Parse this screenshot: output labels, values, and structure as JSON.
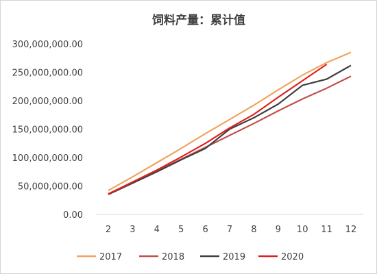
{
  "chart_data": {
    "type": "line",
    "title": "饲料产量：累计值",
    "xlabel": "",
    "ylabel": "",
    "x": [
      2,
      3,
      4,
      5,
      6,
      7,
      8,
      9,
      10,
      11,
      12
    ],
    "x_tick_labels": [
      "2",
      "3",
      "4",
      "5",
      "6",
      "7",
      "8",
      "9",
      "10",
      "11",
      "12"
    ],
    "ylim": [
      0,
      300000000
    ],
    "y_ticks": [
      0,
      50000000,
      100000000,
      150000000,
      200000000,
      250000000,
      300000000
    ],
    "y_tick_labels": [
      "0.00",
      "50,000,000.00",
      "100,000,000.00",
      "150,000,000.00",
      "200,000,000.00",
      "250,000,000.00",
      "300,000,000.00"
    ],
    "grid": false,
    "legend_position": "bottom",
    "series": [
      {
        "name": "2017",
        "color": "#F2A35E",
        "values": [
          42000000,
          66000000,
          91000000,
          116000000,
          142000000,
          167000000,
          192000000,
          219000000,
          245000000,
          267000000,
          285000000
        ]
      },
      {
        "name": "2018",
        "color": "#C0504D",
        "values": [
          36000000,
          56000000,
          76000000,
          97000000,
          118000000,
          139000000,
          160000000,
          182000000,
          203000000,
          222000000,
          243000000
        ]
      },
      {
        "name": "2019",
        "color": "#404040",
        "values": [
          35000000,
          55000000,
          75000000,
          96000000,
          116000000,
          150000000,
          170000000,
          194000000,
          227000000,
          238000000,
          262000000
        ]
      },
      {
        "name": "2020",
        "color": "#E0201E",
        "values": [
          36000000,
          57000000,
          78000000,
          101000000,
          125000000,
          152000000,
          176000000,
          206000000,
          235000000,
          264000000,
          null
        ]
      }
    ]
  }
}
